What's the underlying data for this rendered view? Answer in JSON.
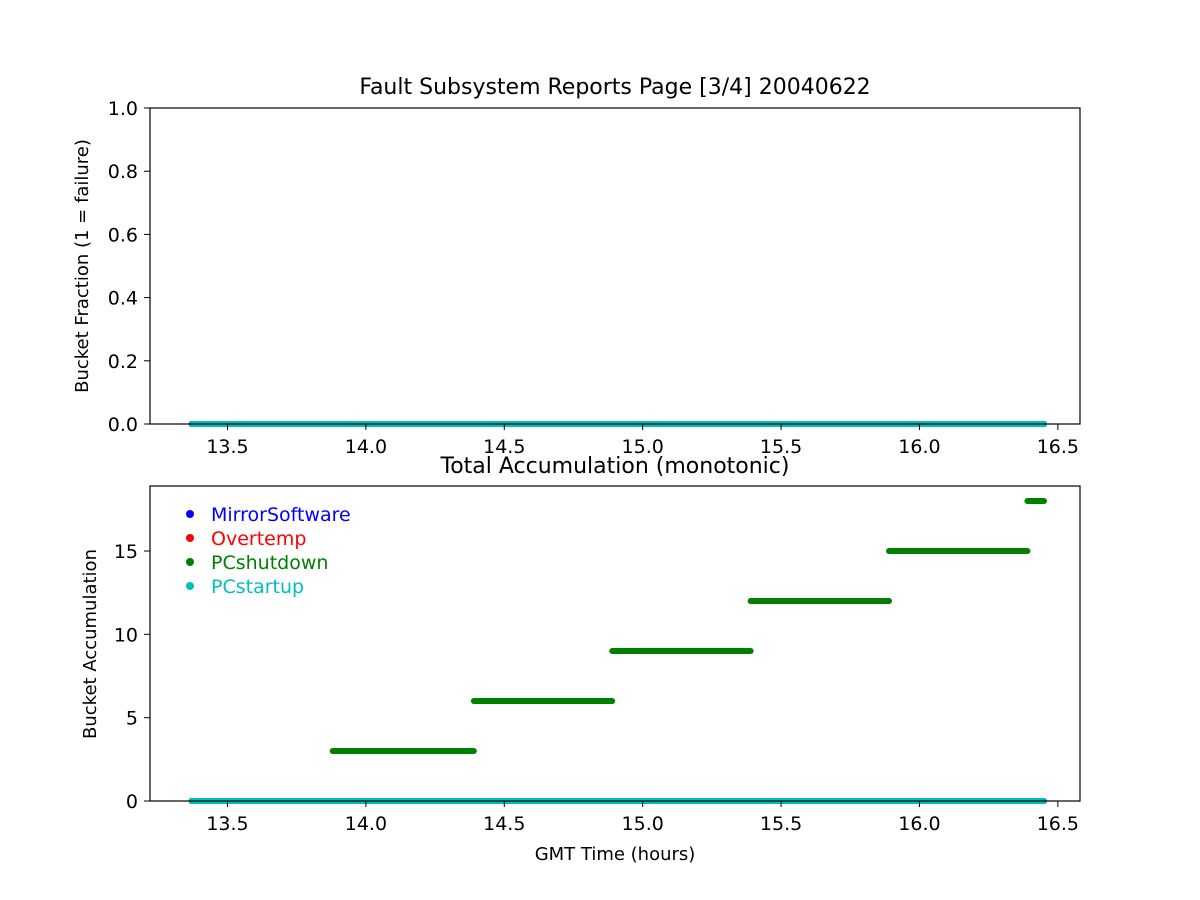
{
  "chart_data": [
    {
      "type": "scatter",
      "title": "Fault Subsystem Reports Page [3/4] 20040622",
      "xlabel": "",
      "ylabel": "Bucket Fraction (1 = failure)",
      "xlim": [
        13.22,
        16.58
      ],
      "ylim": [
        0.0,
        1.0
      ],
      "xticks": [
        "13.5",
        "14.0",
        "14.5",
        "15.0",
        "15.5",
        "16.0",
        "16.5"
      ],
      "yticks": [
        "0.0",
        "0.2",
        "0.4",
        "0.6",
        "0.8",
        "1.0"
      ],
      "grid": false,
      "series": [
        {
          "name": "MirrorSoftware",
          "color": "#0000ff",
          "segments": [
            {
              "x": [
                13.37,
                16.45
              ],
              "y": 0
            }
          ]
        },
        {
          "name": "Overtemp",
          "color": "#ff0000",
          "segments": [
            {
              "x": [
                13.37,
                16.45
              ],
              "y": 0
            }
          ]
        },
        {
          "name": "PCshutdown",
          "color": "#008000",
          "segments": [
            {
              "x": [
                13.37,
                16.45
              ],
              "y": 0
            }
          ]
        },
        {
          "name": "PCstartup",
          "color": "#00bfbf",
          "segments": [
            {
              "x": [
                13.37,
                16.45
              ],
              "y": 0
            }
          ]
        }
      ]
    },
    {
      "type": "scatter",
      "title": "Total Accumulation (monotonic)",
      "xlabel": "GMT Time (hours)",
      "ylabel": "Bucket Accumulation",
      "xlim": [
        13.22,
        16.58
      ],
      "ylim": [
        0,
        18.9
      ],
      "xticks": [
        "13.5",
        "14.0",
        "14.5",
        "15.0",
        "15.5",
        "16.0",
        "16.5"
      ],
      "yticks": [
        "0",
        "5",
        "10",
        "15"
      ],
      "grid": false,
      "legend": "upper-left",
      "series": [
        {
          "name": "MirrorSoftware",
          "color": "#0000ff",
          "segments": [
            {
              "x": [
                13.37,
                16.45
              ],
              "y": 0
            }
          ]
        },
        {
          "name": "Overtemp",
          "color": "#ff0000",
          "segments": [
            {
              "x": [
                13.37,
                16.45
              ],
              "y": 0
            }
          ]
        },
        {
          "name": "PCshutdown",
          "color": "#008000",
          "segments": [
            {
              "x": [
                13.37,
                13.88
              ],
              "y": 0
            },
            {
              "x": [
                13.88,
                14.39
              ],
              "y": 3
            },
            {
              "x": [
                14.39,
                14.89
              ],
              "y": 6
            },
            {
              "x": [
                14.89,
                15.39
              ],
              "y": 9
            },
            {
              "x": [
                15.39,
                15.89
              ],
              "y": 12
            },
            {
              "x": [
                15.89,
                16.39
              ],
              "y": 15
            },
            {
              "x": [
                16.39,
                16.45
              ],
              "y": 18
            }
          ]
        },
        {
          "name": "PCstartup",
          "color": "#00bfbf",
          "segments": [
            {
              "x": [
                13.37,
                16.45
              ],
              "y": 0
            }
          ]
        }
      ]
    }
  ]
}
